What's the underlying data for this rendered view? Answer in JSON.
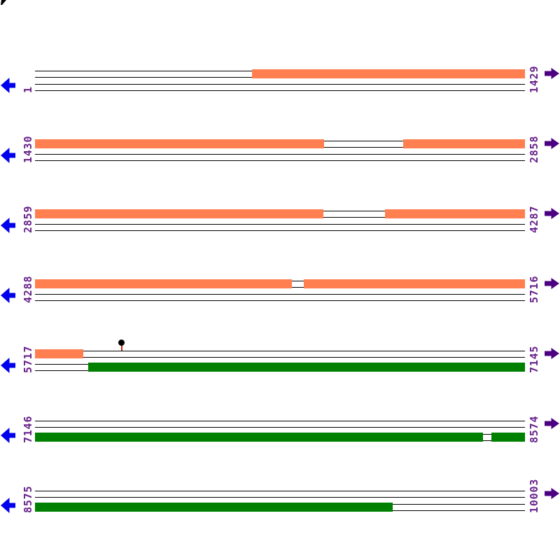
{
  "page": {
    "background": "#FFFFFF",
    "title": "",
    "corner_artifact": "clipped black glyph fragment at top-left corner"
  },
  "colors": {
    "forward_feature": "#FF7F50",
    "reverse_feature": "#008000",
    "frame_line": "#000000",
    "left_arrow": "#0000EE",
    "right_arrow": "#4B0082",
    "coordinate_label": "#68228B",
    "marker_head": "#000000",
    "marker_stem": "#CC2200",
    "artifact": "#000000"
  },
  "chart_data": {
    "type": "bar",
    "subtype": "linear genome feature / ORF map, 7 stacked coordinate panels",
    "sequence_range": [
      1,
      10003
    ],
    "bp_per_panel": 1429,
    "frame_lines_per_panel": 4,
    "grid": "off",
    "legend": "none",
    "axis_label_rotation": -90,
    "panels": [
      {
        "start_label": "1",
        "end_label": "1429",
        "forward_segments": [
          {
            "frac": [
              0.4429,
              1.0
            ],
            "approx_bp": [
              634,
              1429
            ]
          }
        ],
        "reverse_segments": [],
        "markers": []
      },
      {
        "start_label": "1430",
        "end_label": "2858",
        "forward_segments": [
          {
            "frac": [
              0.0,
              0.59
            ],
            "approx_bp": [
              1430,
              2273
            ]
          },
          {
            "frac": [
              0.7514,
              1.0
            ],
            "approx_bp": [
              2504,
              2858
            ]
          }
        ],
        "reverse_segments": [],
        "markers": []
      },
      {
        "start_label": "2859",
        "end_label": "4287",
        "forward_segments": [
          {
            "frac": [
              0.0,
              0.5886
            ],
            "approx_bp": [
              2859,
              3700
            ]
          },
          {
            "frac": [
              0.7143,
              1.0
            ],
            "approx_bp": [
              3880,
              4287
            ]
          }
        ],
        "reverse_segments": [],
        "markers": []
      },
      {
        "start_label": "4288",
        "end_label": "5716",
        "forward_segments": [
          {
            "frac": [
              0.0,
              0.5243
            ],
            "approx_bp": [
              4288,
              5037
            ]
          },
          {
            "frac": [
              0.5486,
              1.0
            ],
            "approx_bp": [
              5072,
              5716
            ]
          }
        ],
        "reverse_segments": [],
        "markers": []
      },
      {
        "start_label": "5717",
        "end_label": "7145",
        "forward_segments": [
          {
            "frac": [
              0.0,
              0.0986
            ],
            "approx_bp": [
              5717,
              5858
            ]
          }
        ],
        "reverse_segments": [
          {
            "frac": [
              0.1086,
              1.0
            ],
            "approx_bp": [
              5872,
              7145
            ]
          }
        ],
        "markers": [
          {
            "frac": 0.1771,
            "approx_bp": 5970,
            "style": "pin-with-filled-circle"
          }
        ]
      },
      {
        "start_label": "7146",
        "end_label": "8574",
        "forward_segments": [],
        "reverse_segments": [
          {
            "frac": [
              0.0,
              0.9143
            ],
            "approx_bp": [
              7146,
              8452
            ]
          },
          {
            "frac": [
              0.9314,
              1.0
            ],
            "approx_bp": [
              8477,
              8574
            ]
          }
        ],
        "markers": []
      },
      {
        "start_label": "8575",
        "end_label": "10003",
        "forward_segments": [],
        "reverse_segments": [
          {
            "frac": [
              0.0,
              0.73
            ],
            "approx_bp": [
              8575,
              9618
            ]
          }
        ],
        "markers": []
      }
    ]
  }
}
